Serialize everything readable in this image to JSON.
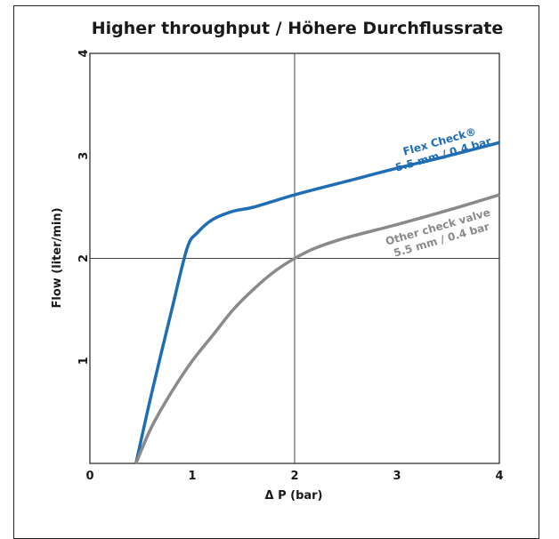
{
  "chart_data": {
    "type": "line",
    "title": "Higher throughput / Höhere Durchflussrate",
    "xlabel": "Δ P (bar)",
    "ylabel": "Flow (liter/min)",
    "xlim": [
      0,
      4
    ],
    "ylim": [
      0,
      4
    ],
    "x_ticks": [
      "0",
      "1",
      "2",
      "3",
      "4"
    ],
    "y_ticks": [
      "1",
      "2",
      "3",
      "4"
    ],
    "grid": "crosshair lines at x=2 and y=2",
    "series": [
      {
        "name": "Flex Check® 5.5 mm / 0.4 bar",
        "color": "#1f6db5",
        "x": [
          0.45,
          0.6,
          0.8,
          0.95,
          1.05,
          1.2,
          1.4,
          1.6,
          2.0,
          2.5,
          3.0,
          3.5,
          4.0
        ],
        "y": [
          0.0,
          0.67,
          1.5,
          2.1,
          2.25,
          2.38,
          2.46,
          2.5,
          2.62,
          2.75,
          2.88,
          3.0,
          3.13
        ]
      },
      {
        "name": "Other check valve 5.5 mm / 0.4 bar",
        "color": "#8a8a8a",
        "x": [
          0.45,
          0.6,
          0.8,
          1.0,
          1.2,
          1.4,
          1.6,
          1.8,
          2.0,
          2.2,
          2.5,
          3.0,
          3.5,
          4.0
        ],
        "y": [
          0.0,
          0.35,
          0.7,
          1.0,
          1.25,
          1.5,
          1.7,
          1.87,
          2.0,
          2.1,
          2.2,
          2.33,
          2.47,
          2.62
        ]
      }
    ],
    "annotations": [
      {
        "line1": "Flex Check®",
        "line2": "5.5 mm / 0.4 bar",
        "color": "#1f6db5"
      },
      {
        "line1": "Other check valve",
        "line2": "5.5 mm / 0.4 bar",
        "color": "#8a8a8a"
      }
    ]
  }
}
